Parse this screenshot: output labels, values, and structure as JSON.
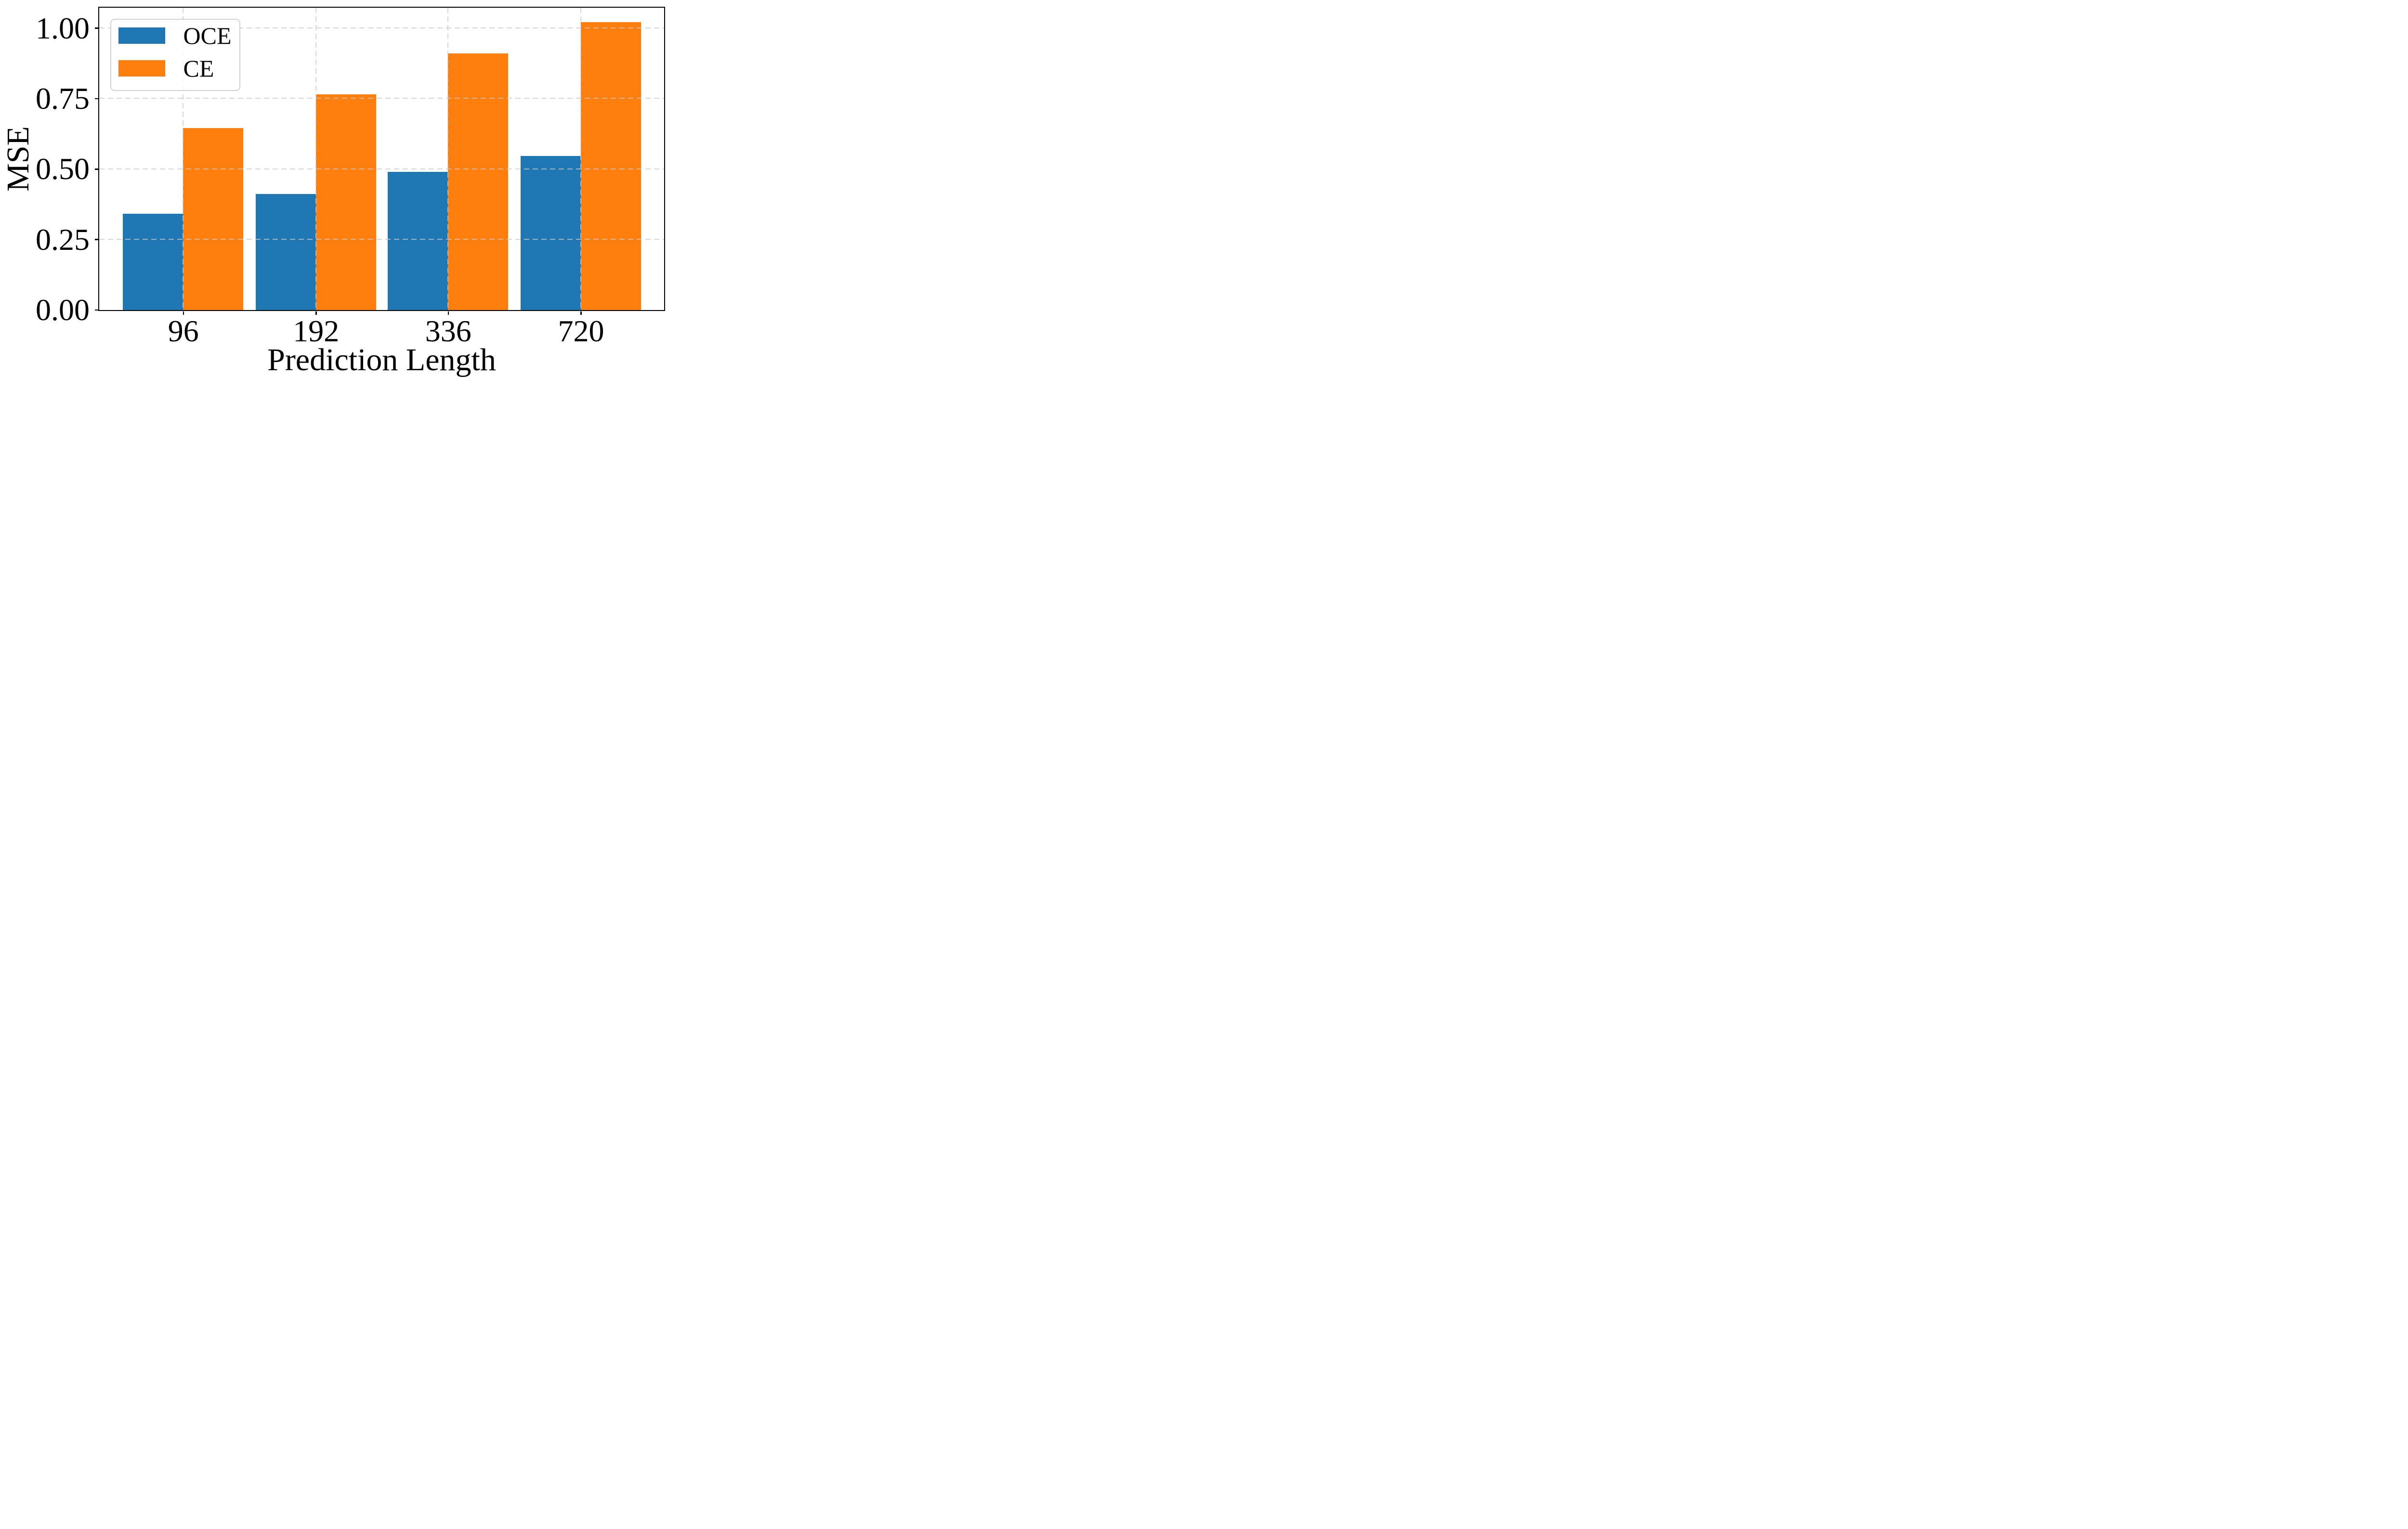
{
  "chart_data": {
    "type": "bar",
    "title": "",
    "categories": [
      "96",
      "192",
      "336",
      "720"
    ],
    "series": [
      {
        "name": "OCE",
        "color": "#1f77b4",
        "values": [
          0.34,
          0.41,
          0.49,
          0.545
        ]
      },
      {
        "name": "CE",
        "color": "#ff7f0e",
        "values": [
          0.645,
          0.765,
          0.91,
          1.02
        ]
      }
    ],
    "xlabel": "Prediction Length",
    "ylabel": "MSE",
    "ylim": [
      0,
      1.07
    ],
    "yticks": [
      {
        "value": 0,
        "label": "0.00"
      },
      {
        "value": 0.25,
        "label": "0.25"
      },
      {
        "value": 0.5,
        "label": "0.50"
      },
      {
        "value": 0.75,
        "label": "0.75"
      },
      {
        "value": 1.0,
        "label": "1.00"
      }
    ],
    "grid": true,
    "grid_style": "dashed",
    "grid_color": "#c8c8c8",
    "axis_color": "#000000",
    "legend": {
      "position": "upper left",
      "entries": [
        "OCE",
        "CE"
      ]
    }
  }
}
